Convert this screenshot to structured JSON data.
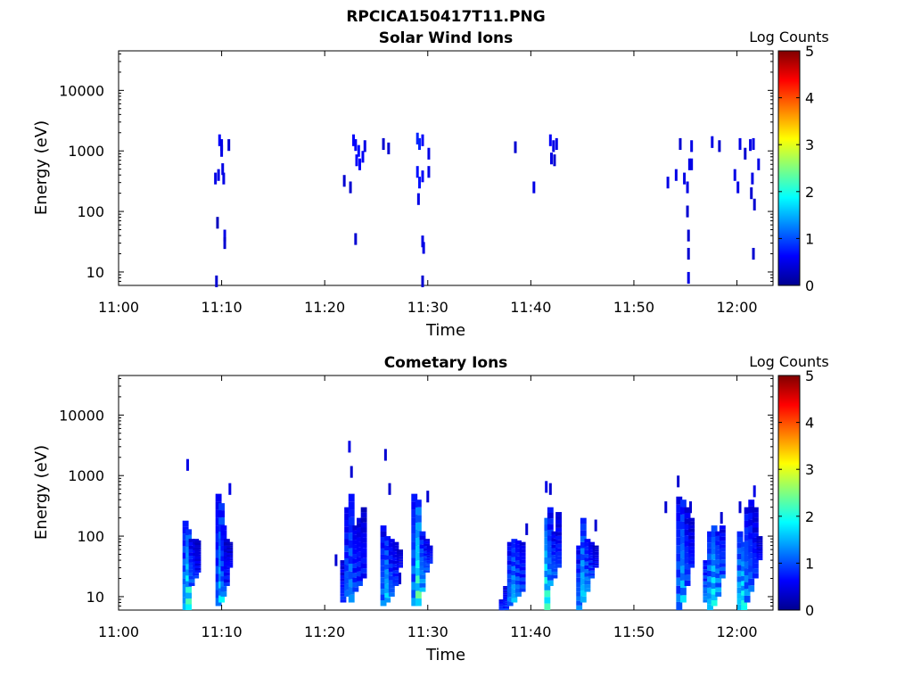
{
  "figure": {
    "title": "RPCICA150417T11.PNG",
    "colorbar_label": "Log Counts"
  },
  "chart_data": [
    {
      "type": "heatmap",
      "title": "Solar Wind Ions",
      "xlabel": "Time",
      "ylabel": "Energy (eV)",
      "x_ticks": [
        "11:00",
        "11:10",
        "11:20",
        "11:30",
        "11:40",
        "11:50",
        "12:00"
      ],
      "x_tick_minutes": [
        0,
        10,
        20,
        30,
        40,
        50,
        60
      ],
      "xlim_minutes": [
        0,
        63.5
      ],
      "y_scale": "log",
      "y_ticks": [
        "10",
        "100",
        "1000",
        "10000"
      ],
      "y_tick_values": [
        10,
        100,
        1000,
        10000
      ],
      "ylim": [
        6,
        45000
      ],
      "colorbar": {
        "label": "Log Counts",
        "range": [
          0,
          5
        ],
        "ticks": [
          "0",
          "1",
          "2",
          "3",
          "4",
          "5"
        ],
        "colormap": "jet"
      },
      "cells": [
        [
          9.5,
          7,
          0.4
        ],
        [
          9.6,
          65,
          0.3
        ],
        [
          9.8,
          1500,
          0.6
        ],
        [
          10.0,
          1250,
          0.5
        ],
        [
          10.0,
          1000,
          0.5
        ],
        [
          9.4,
          350,
          0.5
        ],
        [
          9.7,
          400,
          0.5
        ],
        [
          10.1,
          500,
          0.5
        ],
        [
          10.2,
          350,
          0.5
        ],
        [
          10.3,
          40,
          0.5
        ],
        [
          10.3,
          30,
          0.4
        ],
        [
          10.7,
          1250,
          0.4
        ],
        [
          21.9,
          320,
          0.4
        ],
        [
          22.5,
          250,
          0.4
        ],
        [
          22.8,
          1500,
          0.6
        ],
        [
          23.0,
          1250,
          0.6
        ],
        [
          23.3,
          1000,
          0.7
        ],
        [
          23.1,
          700,
          0.6
        ],
        [
          23.4,
          600,
          0.6
        ],
        [
          23.7,
          800,
          0.6
        ],
        [
          23.9,
          1200,
          0.5
        ],
        [
          23.0,
          35,
          0.4
        ],
        [
          25.7,
          1300,
          0.4
        ],
        [
          26.2,
          1100,
          0.4
        ],
        [
          29.0,
          1600,
          0.8
        ],
        [
          29.2,
          1300,
          0.8
        ],
        [
          29.5,
          1500,
          0.6
        ],
        [
          29.0,
          450,
          0.7
        ],
        [
          29.2,
          300,
          0.7
        ],
        [
          29.5,
          380,
          0.6
        ],
        [
          29.1,
          160,
          0.5
        ],
        [
          29.6,
          25,
          0.5
        ],
        [
          29.5,
          32,
          0.5
        ],
        [
          29.5,
          7,
          0.4
        ],
        [
          30.1,
          450,
          0.5
        ],
        [
          30.1,
          900,
          0.5
        ],
        [
          38.5,
          1150,
          0.4
        ],
        [
          40.3,
          250,
          0.5
        ],
        [
          41.9,
          1500,
          0.6
        ],
        [
          42.2,
          1200,
          0.5
        ],
        [
          42.5,
          1300,
          0.5
        ],
        [
          42.0,
          750,
          0.5
        ],
        [
          42.3,
          700,
          0.4
        ],
        [
          53.3,
          300,
          0.5
        ],
        [
          54.1,
          400,
          0.5
        ],
        [
          54.5,
          1300,
          0.4
        ],
        [
          54.9,
          350,
          0.5
        ],
        [
          55.2,
          250,
          0.5
        ],
        [
          55.4,
          600,
          0.5
        ],
        [
          55.6,
          1200,
          0.5
        ],
        [
          55.2,
          100,
          0.4
        ],
        [
          55.3,
          40,
          0.4
        ],
        [
          55.3,
          20,
          0.4
        ],
        [
          55.3,
          8,
          0.5
        ],
        [
          55.6,
          600,
          0.5
        ],
        [
          57.6,
          1400,
          0.5
        ],
        [
          58.3,
          1200,
          0.4
        ],
        [
          59.8,
          400,
          0.5
        ],
        [
          60.1,
          250,
          0.5
        ],
        [
          60.3,
          1300,
          0.5
        ],
        [
          60.8,
          900,
          0.4
        ],
        [
          61.3,
          1250,
          0.5
        ],
        [
          61.6,
          1300,
          0.5
        ],
        [
          61.5,
          350,
          0.5
        ],
        [
          61.4,
          200,
          0.4
        ],
        [
          61.7,
          130,
          0.4
        ],
        [
          61.6,
          20,
          0.4
        ],
        [
          62.1,
          600,
          0.5
        ]
      ]
    },
    {
      "type": "heatmap",
      "title": "Cometary Ions",
      "xlabel": "Time",
      "ylabel": "Energy (eV)",
      "x_ticks": [
        "11:00",
        "11:10",
        "11:20",
        "11:30",
        "11:40",
        "11:50",
        "12:00"
      ],
      "x_tick_minutes": [
        0,
        10,
        20,
        30,
        40,
        50,
        60
      ],
      "xlim_minutes": [
        0,
        63.5
      ],
      "y_scale": "log",
      "y_ticks": [
        "10",
        "100",
        "1000",
        "10000"
      ],
      "y_tick_values": [
        10,
        100,
        1000,
        10000
      ],
      "ylim": [
        6,
        45000
      ],
      "colorbar": {
        "label": "Log Counts",
        "range": [
          0,
          5
        ],
        "ticks": [
          "0",
          "1",
          "2",
          "3",
          "4",
          "5"
        ],
        "colormap": "jet"
      },
      "columns": [
        [
          6.5,
          6,
          180,
          1.3
        ],
        [
          6.8,
          6,
          130,
          1.9
        ],
        [
          7.1,
          15,
          90,
          1.0
        ],
        [
          7.5,
          20,
          90,
          0.8
        ],
        [
          7.7,
          25,
          85,
          0.6
        ],
        [
          9.7,
          7,
          500,
          1.0
        ],
        [
          10.0,
          8,
          350,
          1.5
        ],
        [
          10.2,
          10,
          150,
          1.1
        ],
        [
          10.5,
          15,
          90,
          0.7
        ],
        [
          10.8,
          30,
          80,
          0.6
        ],
        [
          21.8,
          8,
          40,
          0.8
        ],
        [
          22.2,
          10,
          300,
          1.0
        ],
        [
          22.6,
          8,
          500,
          1.2
        ],
        [
          23.0,
          12,
          150,
          0.9
        ],
        [
          23.4,
          15,
          200,
          0.8
        ],
        [
          23.8,
          20,
          300,
          0.7
        ],
        [
          25.7,
          7,
          150,
          1.1
        ],
        [
          26.1,
          8,
          100,
          1.5
        ],
        [
          26.5,
          10,
          90,
          1.0
        ],
        [
          26.9,
          15,
          80,
          0.8
        ],
        [
          27.3,
          30,
          60,
          0.6
        ],
        [
          28.7,
          7,
          500,
          1.2
        ],
        [
          29.1,
          7,
          400,
          2.0
        ],
        [
          29.5,
          12,
          120,
          1.3
        ],
        [
          29.9,
          25,
          90,
          1.0
        ],
        [
          30.2,
          35,
          70,
          0.8
        ],
        [
          37.2,
          6,
          9,
          0.9
        ],
        [
          37.6,
          6,
          15,
          0.8
        ],
        [
          38.0,
          7,
          80,
          1.1
        ],
        [
          38.4,
          8,
          90,
          1.4
        ],
        [
          38.8,
          10,
          85,
          1.1
        ],
        [
          39.2,
          12,
          80,
          0.9
        ],
        [
          41.6,
          6,
          200,
          1.9
        ],
        [
          41.9,
          15,
          300,
          1.2
        ],
        [
          42.3,
          20,
          120,
          1.0
        ],
        [
          42.7,
          30,
          250,
          0.8
        ],
        [
          44.7,
          6,
          70,
          1.1
        ],
        [
          45.1,
          8,
          200,
          1.5
        ],
        [
          45.5,
          12,
          90,
          1.2
        ],
        [
          45.9,
          20,
          80,
          0.9
        ],
        [
          46.3,
          30,
          70,
          0.6
        ],
        [
          54.4,
          6,
          450,
          1.1
        ],
        [
          54.8,
          8,
          400,
          1.4
        ],
        [
          55.2,
          15,
          300,
          0.9
        ],
        [
          55.6,
          30,
          200,
          0.7
        ],
        [
          57.0,
          8,
          40,
          1.2
        ],
        [
          57.4,
          6,
          120,
          1.4
        ],
        [
          57.8,
          7,
          150,
          1.7
        ],
        [
          58.2,
          10,
          120,
          1.3
        ],
        [
          58.6,
          20,
          150,
          1.0
        ],
        [
          60.3,
          6,
          120,
          1.5
        ],
        [
          60.7,
          6,
          80,
          1.8
        ],
        [
          61.0,
          8,
          300,
          1.2
        ],
        [
          61.4,
          12,
          400,
          1.0
        ],
        [
          61.8,
          20,
          300,
          0.8
        ],
        [
          62.2,
          40,
          100,
          0.6
        ]
      ],
      "cells": [
        [
          6.7,
          1500,
          0.5
        ],
        [
          10.8,
          600,
          0.5
        ],
        [
          22.4,
          3000,
          0.5
        ],
        [
          22.6,
          1150,
          0.4
        ],
        [
          25.9,
          2200,
          0.4
        ],
        [
          26.3,
          600,
          0.4
        ],
        [
          30.0,
          450,
          0.4
        ],
        [
          21.1,
          40,
          0.4
        ],
        [
          27.3,
          20,
          0.4
        ],
        [
          41.5,
          650,
          0.5
        ],
        [
          41.9,
          600,
          0.4
        ],
        [
          39.6,
          130,
          0.4
        ],
        [
          46.3,
          150,
          0.4
        ],
        [
          53.1,
          300,
          0.4
        ],
        [
          54.3,
          800,
          0.4
        ],
        [
          55.5,
          300,
          0.4
        ],
        [
          58.5,
          200,
          0.4
        ],
        [
          60.3,
          300,
          0.4
        ],
        [
          61.7,
          550,
          0.5
        ]
      ]
    }
  ]
}
